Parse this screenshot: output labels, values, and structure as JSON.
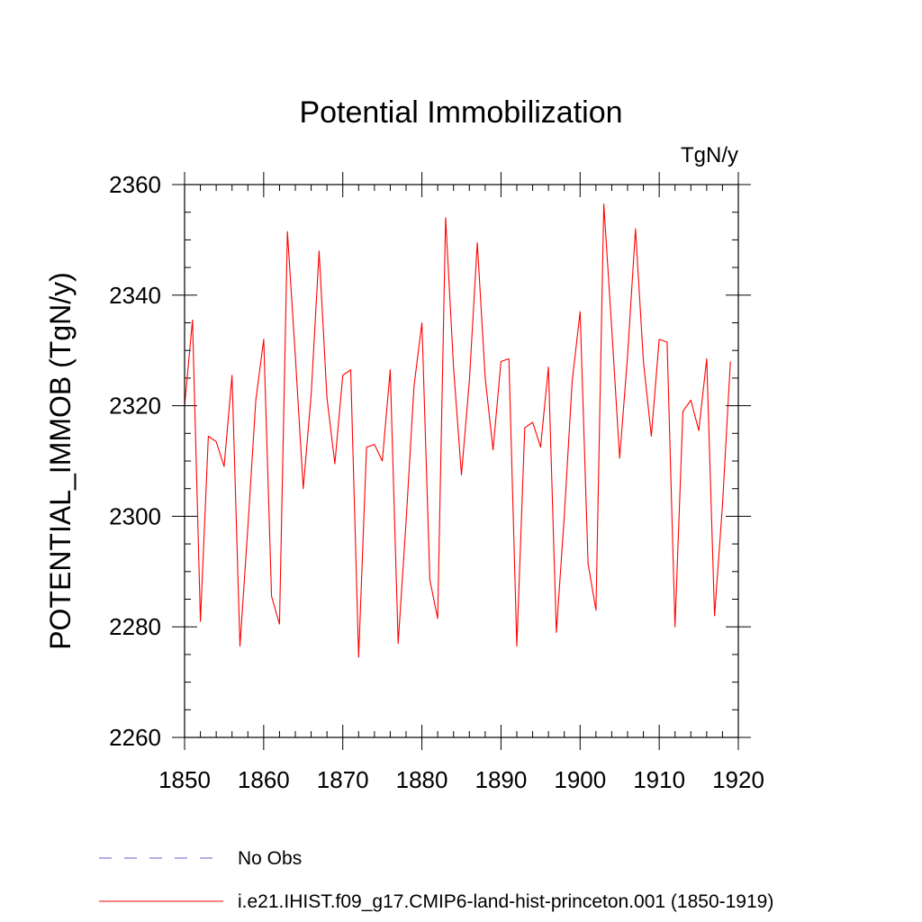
{
  "chart_data": {
    "type": "line",
    "title": "Potential Immobilization",
    "units_label": "TgN/y",
    "ylabel": "POTENTIAL_IMMOB  (TgN/y)",
    "xlabel": "",
    "xlim": [
      1850,
      1920
    ],
    "ylim": [
      2260,
      2360
    ],
    "xticks": [
      1850,
      1860,
      1870,
      1880,
      1890,
      1900,
      1910,
      1920
    ],
    "yticks": [
      2260,
      2280,
      2300,
      2320,
      2340,
      2360
    ],
    "grid": false,
    "legend_position": "bottom-left",
    "series": [
      {
        "name": "No Obs",
        "style": "dashed",
        "color": "#6a5acd",
        "x": [],
        "y": []
      },
      {
        "name": "i.e21.IHIST.f09_g17.CMIP6-land-hist-princeton.001 (1850-1919)",
        "style": "solid",
        "color": "#ff0000",
        "x": [
          1850,
          1851,
          1852,
          1853,
          1854,
          1855,
          1856,
          1857,
          1858,
          1859,
          1860,
          1861,
          1862,
          1863,
          1864,
          1865,
          1866,
          1867,
          1868,
          1869,
          1870,
          1871,
          1872,
          1873,
          1874,
          1875,
          1876,
          1877,
          1878,
          1879,
          1880,
          1881,
          1882,
          1883,
          1884,
          1885,
          1886,
          1887,
          1888,
          1889,
          1890,
          1891,
          1892,
          1893,
          1894,
          1895,
          1896,
          1897,
          1898,
          1899,
          1900,
          1901,
          1902,
          1903,
          1904,
          1905,
          1906,
          1907,
          1908,
          1909,
          1910,
          1911,
          1912,
          1913,
          1914,
          1915,
          1916,
          1917,
          1918,
          1919
        ],
        "y": [
          2320,
          2335.5,
          2281,
          2314.5,
          2313.5,
          2309,
          2325.5,
          2276.5,
          2298,
          2321,
          2332,
          2285.5,
          2280.5,
          2351.5,
          2329,
          2305,
          2322,
          2348,
          2321.5,
          2309.5,
          2325.5,
          2326.5,
          2274.5,
          2312.5,
          2313,
          2310,
          2326.5,
          2277,
          2299,
          2323.5,
          2335,
          2288.5,
          2281.5,
          2354,
          2327,
          2307.5,
          2324.5,
          2349.5,
          2325,
          2312,
          2328,
          2328.5,
          2276.5,
          2316,
          2317,
          2312.5,
          2327,
          2279,
          2300,
          2324.5,
          2337,
          2291.5,
          2283,
          2356.5,
          2334,
          2310.5,
          2329,
          2352,
          2328,
          2314.5,
          2332,
          2331.5,
          2280,
          2319,
          2321,
          2315.5,
          2328.5,
          2282,
          2302,
          2328
        ]
      }
    ]
  }
}
